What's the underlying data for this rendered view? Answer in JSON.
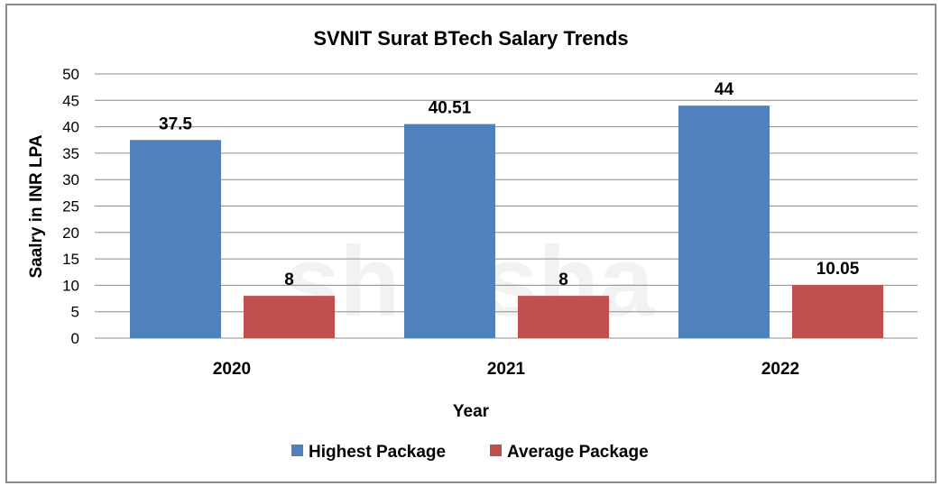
{
  "chart_data": {
    "type": "bar",
    "title": "SVNIT Surat BTech Salary Trends",
    "xlabel": "Year",
    "ylabel": "Saalry in INR LPA",
    "categories": [
      "2020",
      "2021",
      "2022"
    ],
    "series": [
      {
        "name": "Highest Package",
        "values": [
          37.5,
          40.51,
          44
        ],
        "labels": [
          "37.5",
          "40.51",
          "44"
        ],
        "color": "#4f81bd"
      },
      {
        "name": "Average Package",
        "values": [
          8,
          8,
          10.05
        ],
        "labels": [
          "8",
          "8",
          "10.05"
        ],
        "color": "#c0504d"
      }
    ],
    "ylim": [
      0,
      50
    ],
    "yticks": [
      "0",
      "5",
      "10",
      "15",
      "20",
      "25",
      "30",
      "35",
      "40",
      "45",
      "50"
    ],
    "grid": true,
    "legend": "bottom",
    "watermark": "shiksha"
  }
}
